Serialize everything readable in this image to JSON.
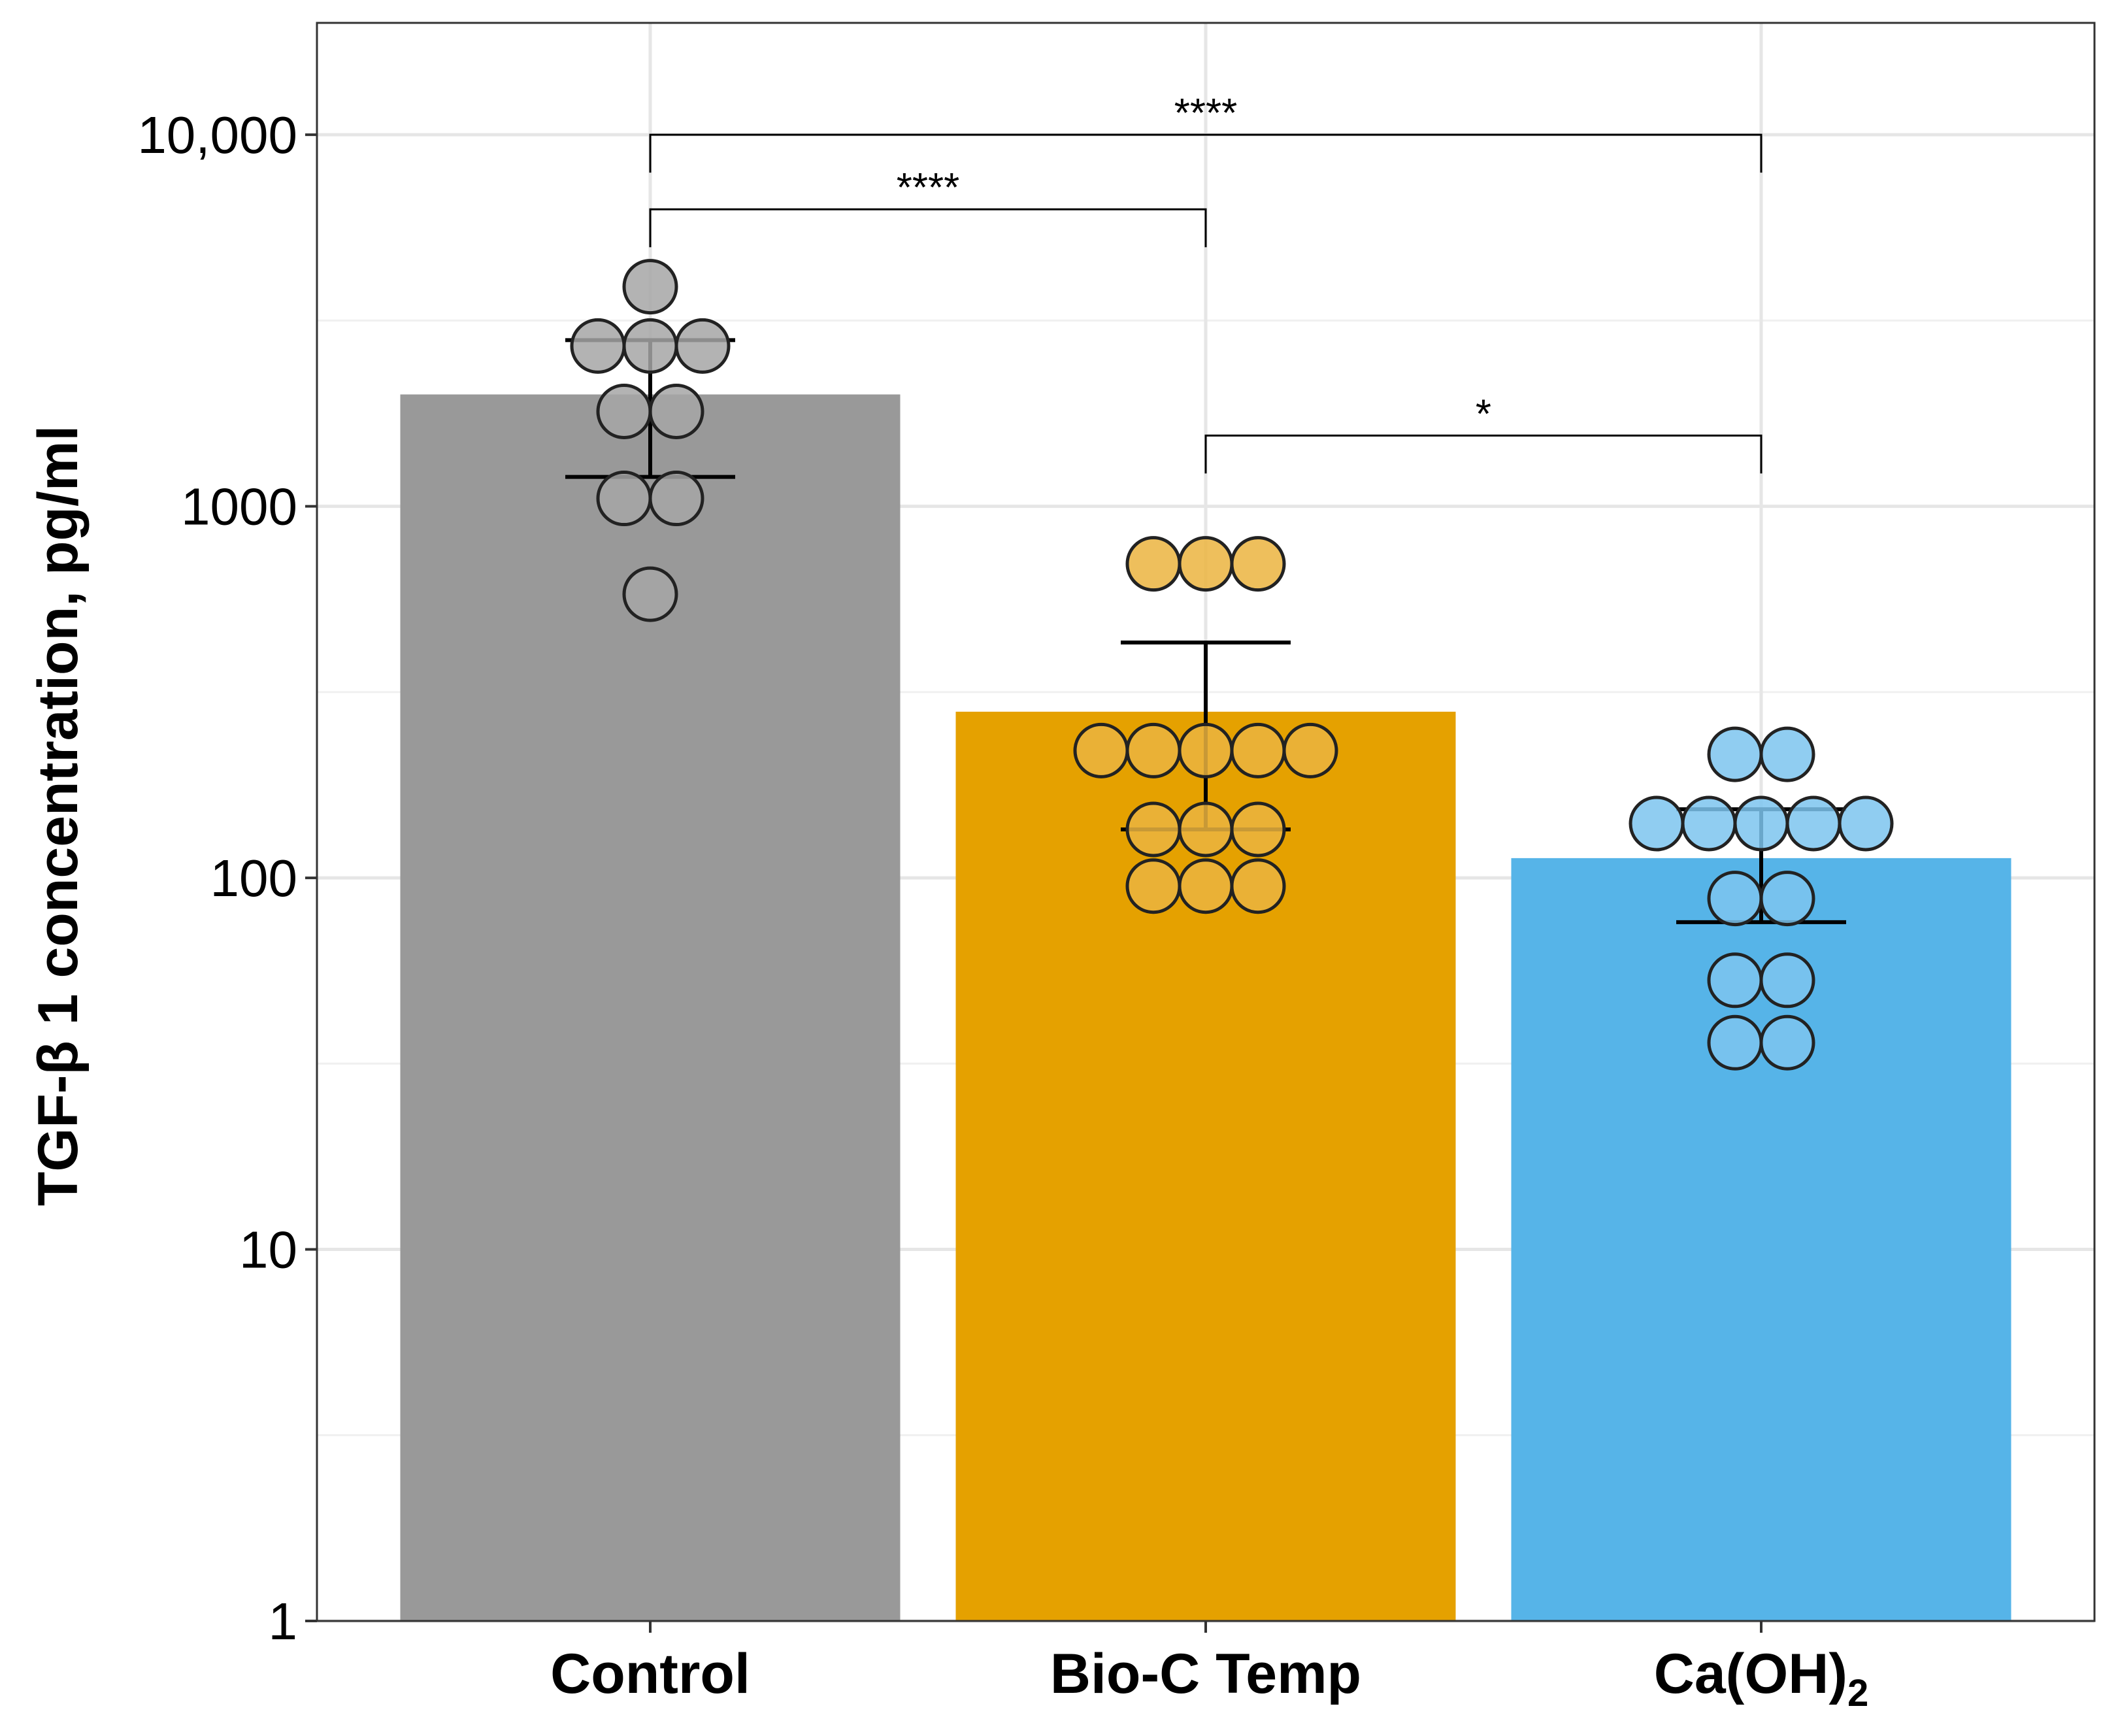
{
  "chart_data": {
    "type": "bar",
    "title": "",
    "xlabel": "",
    "ylabel": "TGF-β 1 concentration, pg/ml",
    "yscale": "log10",
    "ylim": [
      1,
      20000
    ],
    "yticks": [
      1,
      10,
      100,
      1000,
      10000
    ],
    "yticklabels": [
      "1",
      "10",
      "100",
      "1000",
      "10,000"
    ],
    "grid": true,
    "legend": "none",
    "categories": [
      {
        "label": "Control",
        "subscript": ""
      },
      {
        "label": "Bio-C Temp",
        "subscript": ""
      },
      {
        "label": "Ca(OH)",
        "subscript": "2"
      }
    ],
    "bars": [
      {
        "mean": 2000,
        "error_low": 1200,
        "error_high": 2800,
        "color": "#999999",
        "point_color": "#a6a6a6"
      },
      {
        "mean": 280,
        "error_low": 135,
        "error_high": 430,
        "color": "#e5a100",
        "point_color": "#ebb440"
      },
      {
        "mean": 113,
        "error_low": 76,
        "error_high": 153,
        "color": "#56b4e8",
        "point_color": "#7dc4ee"
      }
    ],
    "points": [
      [
        3900,
        2700,
        2700,
        2700,
        1800,
        1800,
        1050,
        1050,
        580
      ],
      [
        700,
        700,
        700,
        220,
        220,
        220,
        220,
        220,
        135,
        135,
        135,
        95,
        95,
        95
      ],
      [
        215,
        215,
        140,
        140,
        140,
        140,
        140,
        88,
        88,
        53,
        53,
        36,
        36
      ]
    ],
    "significance": [
      {
        "from": 0,
        "to": 2,
        "y": 10000,
        "label": "****"
      },
      {
        "from": 0,
        "to": 1,
        "y": 6300,
        "label": "****"
      },
      {
        "from": 1,
        "to": 2,
        "y": 1550,
        "label": "*"
      }
    ]
  }
}
